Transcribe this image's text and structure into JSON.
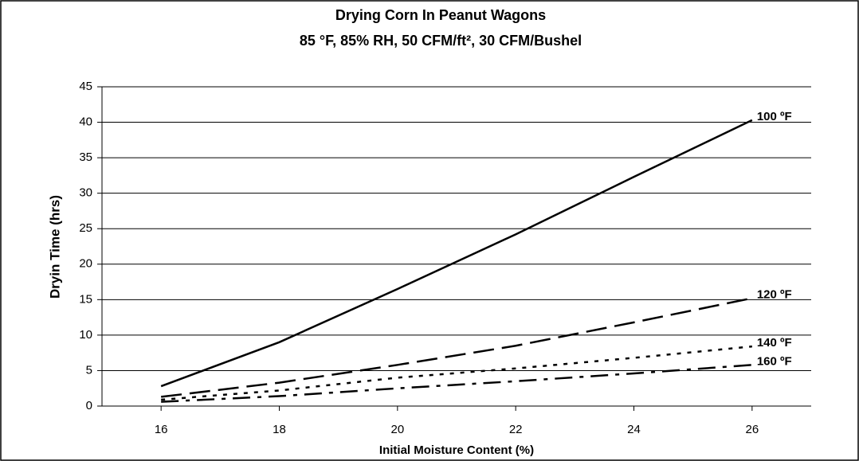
{
  "chart_data": {
    "type": "line",
    "title": "Drying Corn In Peanut Wagons",
    "subtitle": "85 °F, 85% RH, 50 CFM/ft², 30 CFM/Bushel",
    "x_label": "Initial Moisture Content (%)",
    "y_label": "Dryin Time (hrs)",
    "x": [
      16,
      18,
      20,
      22,
      24,
      26
    ],
    "series": [
      {
        "name": "100 ºF",
        "color": "#000000",
        "style": "solid",
        "values": [
          2.8,
          9,
          16.5,
          24.2,
          32.3,
          40.3
        ]
      },
      {
        "name": "120 ºF",
        "color": "#000000",
        "style": "dashed",
        "values": [
          1.3,
          3.3,
          5.8,
          8.5,
          11.8,
          15.2
        ]
      },
      {
        "name": "140 ºF",
        "color": "#000000",
        "style": "dotted",
        "values": [
          0.9,
          2.2,
          4,
          5.3,
          6.8,
          8.4
        ]
      },
      {
        "name": "160 ºF",
        "color": "#000000",
        "style": "dash-dot",
        "values": [
          0.6,
          1.4,
          2.5,
          3.5,
          4.6,
          5.8
        ]
      }
    ],
    "xlim": [
      15,
      27
    ],
    "xticks": [
      16,
      18,
      20,
      22,
      24,
      26
    ],
    "ylim": [
      0,
      45
    ],
    "yticks": [
      0,
      5,
      10,
      15,
      20,
      25,
      30,
      35,
      40,
      45
    ],
    "grid": true
  }
}
